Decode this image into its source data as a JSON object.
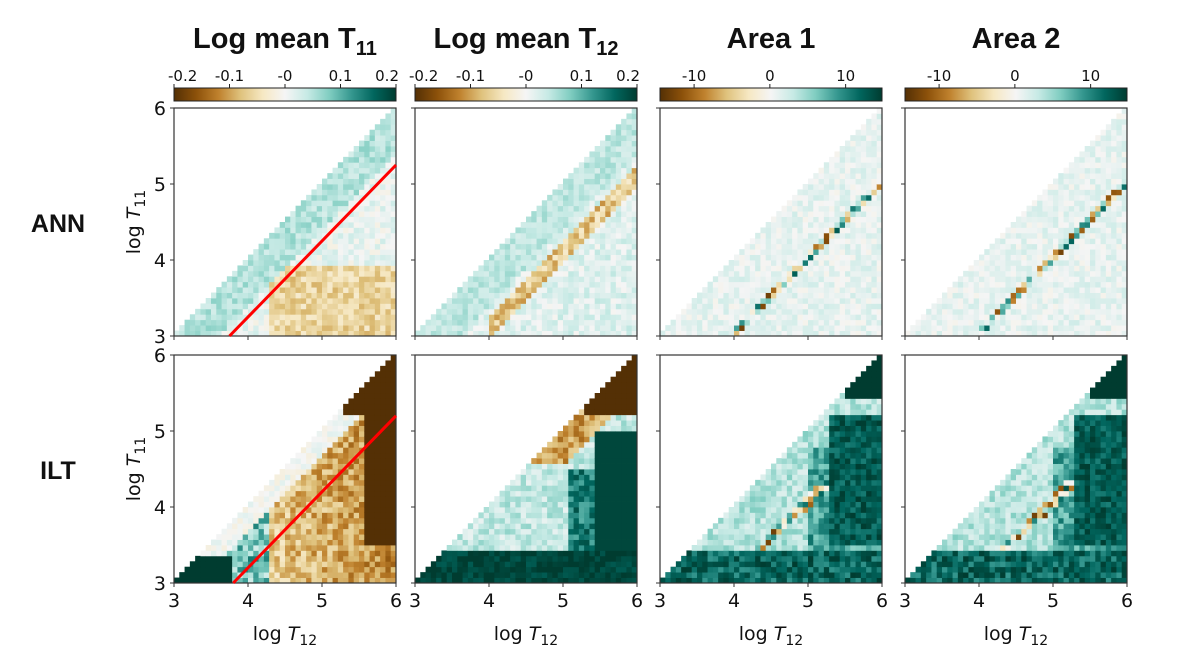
{
  "chart_data": {
    "type": "heatmap",
    "grid": "2x4 panels",
    "columns": [
      {
        "title_main": "Log mean T",
        "title_sub": "11",
        "colorbar": {
          "range": [
            -0.2,
            0.2
          ],
          "ticks": [
            "-0.2",
            "-0.1",
            "-0",
            "0.1",
            "0.2"
          ],
          "tick_values": [
            -0.2,
            -0.1,
            0,
            0.1,
            0.2
          ]
        },
        "pattern": "t11"
      },
      {
        "title_main": "Log mean T",
        "title_sub": "12",
        "colorbar": {
          "range": [
            -0.2,
            0.2
          ],
          "ticks": [
            "-0.2",
            "-0.1",
            "-0",
            "0.1",
            "0.2"
          ],
          "tick_values": [
            -0.2,
            -0.1,
            0,
            0.1,
            0.2
          ]
        },
        "pattern": "t12"
      },
      {
        "title_main": "Area 1",
        "title_sub": "",
        "colorbar": {
          "range": [
            -14.5,
            14.8
          ],
          "ticks": [
            "-10",
            "0",
            "10"
          ],
          "tick_values": [
            -10,
            0,
            10
          ]
        },
        "pattern": "a1"
      },
      {
        "title_main": "Area 2",
        "title_sub": "",
        "colorbar": {
          "range": [
            -14.5,
            14.8
          ],
          "ticks": [
            "-10",
            "0",
            "10"
          ],
          "tick_values": [
            -10,
            0,
            10
          ]
        },
        "pattern": "a2"
      }
    ],
    "rows": [
      {
        "label": "ANN",
        "method": "ann"
      },
      {
        "label": "ILT",
        "method": "ilt"
      }
    ],
    "xlabel_main": "log ",
    "xlabel_var": "T",
    "xlabel_sub": "12",
    "ylabel_main": "log ",
    "ylabel_var": "T",
    "ylabel_sub": "11",
    "xlim": [
      3,
      6
    ],
    "ylim": [
      3,
      6
    ],
    "x_ticks": [
      "3",
      "4",
      "5",
      "6"
    ],
    "y_ticks": [
      "3",
      "4",
      "5",
      "6"
    ],
    "colormap": [
      "#543005",
      "#8c510a",
      "#bf812d",
      "#dfc27d",
      "#f6e8c3",
      "#f5f5f5",
      "#c7eae5",
      "#80cdc1",
      "#35978f",
      "#01665e",
      "#003c30"
    ],
    "reference_lines": [
      {
        "row": "ANN",
        "column": "Log mean T11",
        "color": "#ff0000",
        "from": [
          3.75,
          3
        ],
        "to": [
          6,
          5.25
        ]
      },
      {
        "row": "ILT",
        "column": "Log mean T11",
        "color": "#ff0000",
        "from": [
          3.8,
          3
        ],
        "to": [
          6,
          5.2
        ]
      }
    ]
  }
}
